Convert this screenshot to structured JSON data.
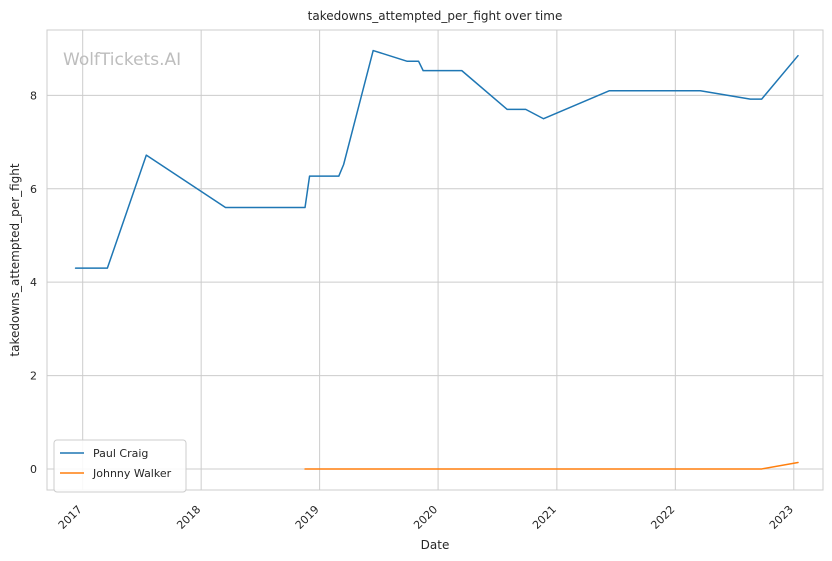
{
  "chart_data": {
    "type": "line",
    "title": "takedowns_attempted_per_fight over time",
    "xlabel": "Date",
    "ylabel": "takedowns_attempted_per_fight",
    "watermark": "WolfTickets.AI",
    "x_ticks": [
      "2017",
      "2018",
      "2019",
      "2020",
      "2021",
      "2022",
      "2023"
    ],
    "y_ticks": [
      "0",
      "2",
      "4",
      "6",
      "8"
    ],
    "xlim": [
      "2016-09-13",
      "2023-04-01"
    ],
    "ylim": [
      -0.45,
      9.4
    ],
    "grid": true,
    "legend_position": "lower-left",
    "series": [
      {
        "name": "Paul Craig",
        "color": "#1f77b4",
        "points": [
          [
            "2016-12-10",
            4.3
          ],
          [
            "2017-03-18",
            4.3
          ],
          [
            "2017-07-16",
            6.72
          ],
          [
            "2018-03-17",
            5.6
          ],
          [
            "2018-11-17",
            5.6
          ],
          [
            "2018-12-01",
            6.27
          ],
          [
            "2019-03-01",
            6.27
          ],
          [
            "2019-03-16",
            6.52
          ],
          [
            "2019-06-15",
            8.96
          ],
          [
            "2019-09-28",
            8.73
          ],
          [
            "2019-11-02",
            8.73
          ],
          [
            "2019-11-16",
            8.53
          ],
          [
            "2020-03-14",
            8.53
          ],
          [
            "2020-08-01",
            7.7
          ],
          [
            "2020-09-27",
            7.7
          ],
          [
            "2020-11-21",
            7.5
          ],
          [
            "2021-06-12",
            8.1
          ],
          [
            "2022-03-19",
            8.1
          ],
          [
            "2022-08-20",
            7.92
          ],
          [
            "2022-09-24",
            7.92
          ],
          [
            "2023-01-14",
            8.85
          ]
        ]
      },
      {
        "name": "Johnny Walker",
        "color": "#ff7f0e",
        "points": [
          [
            "2018-11-17",
            0.0
          ],
          [
            "2022-09-24",
            0.0
          ],
          [
            "2023-01-14",
            0.14
          ]
        ]
      }
    ]
  }
}
